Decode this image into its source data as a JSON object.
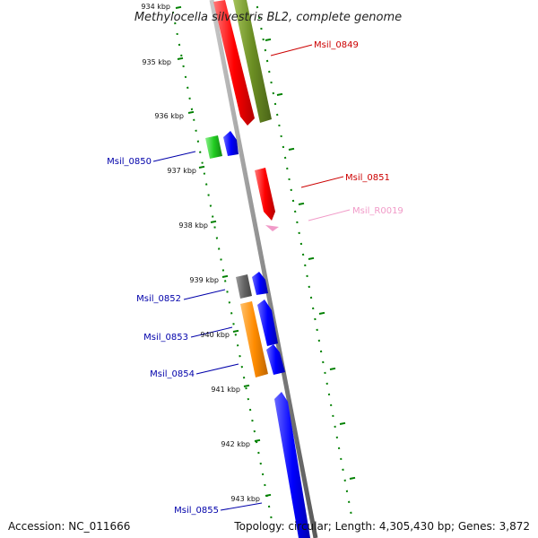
{
  "title": "Methylocella silvestris BL2, complete genome",
  "ticks": [
    "934 kbp",
    "935 kbp",
    "936 kbp",
    "937 kbp",
    "938 kbp",
    "939 kbp",
    "940 kbp",
    "941 kbp",
    "942 kbp",
    "943 kbp"
  ],
  "genes": [
    {
      "id": "Msil_0849",
      "color": "#cc0000"
    },
    {
      "id": "Msil_0850",
      "color": "#0000aa"
    },
    {
      "id": "Msil_0851",
      "color": "#cc0000"
    },
    {
      "id": "Msil_R0019",
      "color": "#f19ac8"
    },
    {
      "id": "Msil_0852",
      "color": "#0000aa"
    },
    {
      "id": "Msil_0853",
      "color": "#0000aa"
    },
    {
      "id": "Msil_0854",
      "color": "#0000aa"
    },
    {
      "id": "Msil_0855",
      "color": "#0000aa"
    }
  ],
  "feature_colors": {
    "cds_red": "#ff0000",
    "cds_olive": "#6b8e23",
    "cds_green": "#22cc22",
    "cds_blue": "#0000ff",
    "cds_orange": "#ff8c00",
    "cds_gray": "#666666",
    "rna_pink": "#f19ac8",
    "backbone": "#8c8c8c",
    "tick": "#008000"
  },
  "footer": {
    "accession": "Accession: NC_011666",
    "summary": "Topology: circular; Length: 4,305,430 bp; Genes: 3,872"
  }
}
